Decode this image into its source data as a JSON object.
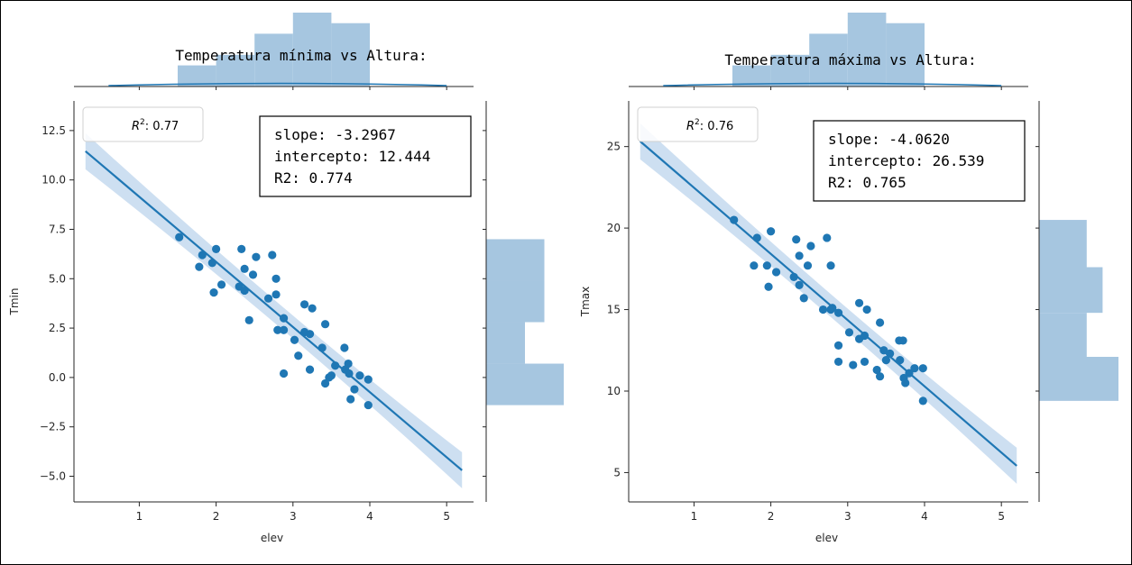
{
  "chart_data": [
    {
      "type": "scatter",
      "title": "Temperatura mínima vs Altura:",
      "xlabel": "elev",
      "ylabel": "Tmin",
      "xlim": [
        0.15,
        5.35
      ],
      "ylim": [
        -6.3,
        14.0
      ],
      "xticks": [
        1,
        2,
        3,
        4,
        5
      ],
      "yticks": [
        -5.0,
        -2.5,
        0.0,
        2.5,
        5.0,
        7.5,
        10.0,
        12.5
      ],
      "ytick_labels": [
        "−5.0",
        "−2.5",
        "0.0",
        "2.5",
        "5.0",
        "7.5",
        "10.0",
        "12.5"
      ],
      "legend": {
        "label": "R",
        "sup": "2",
        "value": ": 0.77",
        "placement": "top-left"
      },
      "stats": [
        "slope: -3.2967",
        "intercepto: 12.444",
        "R2: 0.774"
      ],
      "regression": {
        "slope": -3.2967,
        "intercept": 12.444,
        "x_range": [
          0.3,
          5.2
        ]
      },
      "points": [
        [
          1.52,
          7.1
        ],
        [
          1.78,
          5.6
        ],
        [
          1.82,
          6.2
        ],
        [
          1.95,
          5.8
        ],
        [
          1.97,
          4.3
        ],
        [
          2.0,
          6.5
        ],
        [
          2.07,
          4.7
        ],
        [
          2.3,
          4.6
        ],
        [
          2.33,
          6.5
        ],
        [
          2.37,
          4.4
        ],
        [
          2.37,
          5.5
        ],
        [
          2.43,
          2.9
        ],
        [
          2.48,
          5.2
        ],
        [
          2.52,
          6.1
        ],
        [
          2.68,
          4.0
        ],
        [
          2.73,
          6.2
        ],
        [
          2.78,
          4.2
        ],
        [
          2.78,
          5.0
        ],
        [
          2.8,
          2.4
        ],
        [
          2.88,
          2.4
        ],
        [
          2.88,
          3.0
        ],
        [
          2.88,
          0.2
        ],
        [
          3.02,
          1.9
        ],
        [
          3.07,
          1.1
        ],
        [
          3.15,
          2.3
        ],
        [
          3.15,
          3.7
        ],
        [
          3.22,
          2.2
        ],
        [
          3.22,
          0.4
        ],
        [
          3.25,
          3.5
        ],
        [
          3.38,
          1.5
        ],
        [
          3.42,
          2.7
        ],
        [
          3.42,
          -0.3
        ],
        [
          3.47,
          0.0
        ],
        [
          3.5,
          0.1
        ],
        [
          3.55,
          0.6
        ],
        [
          3.67,
          1.5
        ],
        [
          3.68,
          0.4
        ],
        [
          3.72,
          0.7
        ],
        [
          3.73,
          0.2
        ],
        [
          3.75,
          -1.1
        ],
        [
          3.8,
          -0.6
        ],
        [
          3.87,
          0.1
        ],
        [
          3.98,
          -0.1
        ],
        [
          3.98,
          -1.4
        ]
      ],
      "marginal_x_hist": {
        "bin_edges": [
          0.6,
          1.5,
          2.0,
          2.5,
          3.0,
          3.5,
          4.0
        ],
        "counts": [
          0.05,
          2,
          3,
          5,
          7,
          6
        ]
      },
      "marginal_y_hist": {
        "bin_edges": [
          -1.4,
          0.7,
          2.8,
          4.9,
          7.0
        ],
        "counts": [
          4,
          2,
          3,
          3
        ]
      }
    },
    {
      "type": "scatter",
      "title": "Temperatura máxima vs Altura:",
      "xlabel": "elev",
      "ylabel": "Tmax",
      "xlim": [
        0.15,
        5.35
      ],
      "ylim": [
        3.2,
        27.8
      ],
      "xticks": [
        1,
        2,
        3,
        4,
        5
      ],
      "yticks": [
        5,
        10,
        15,
        20,
        25
      ],
      "ytick_labels": [
        "5",
        "10",
        "15",
        "20",
        "25"
      ],
      "legend": {
        "label": "R",
        "sup": "2",
        "value": ": 0.76",
        "placement": "top-left"
      },
      "stats": [
        "slope: -4.0620",
        "intercepto: 26.539",
        "R2: 0.765"
      ],
      "regression": {
        "slope": -4.062,
        "intercept": 26.539,
        "x_range": [
          0.3,
          5.2
        ]
      },
      "points": [
        [
          1.52,
          20.5
        ],
        [
          1.78,
          17.7
        ],
        [
          1.82,
          19.4
        ],
        [
          1.95,
          17.7
        ],
        [
          1.97,
          16.4
        ],
        [
          2.0,
          19.8
        ],
        [
          2.07,
          17.3
        ],
        [
          2.3,
          17.0
        ],
        [
          2.33,
          19.3
        ],
        [
          2.37,
          18.3
        ],
        [
          2.37,
          16.5
        ],
        [
          2.43,
          15.7
        ],
        [
          2.48,
          17.7
        ],
        [
          2.52,
          18.9
        ],
        [
          2.68,
          15.0
        ],
        [
          2.73,
          19.4
        ],
        [
          2.78,
          17.7
        ],
        [
          2.78,
          15.0
        ],
        [
          2.8,
          15.1
        ],
        [
          2.88,
          14.8
        ],
        [
          2.88,
          12.8
        ],
        [
          2.88,
          11.8
        ],
        [
          3.02,
          13.6
        ],
        [
          3.07,
          11.6
        ],
        [
          3.15,
          13.2
        ],
        [
          3.15,
          15.4
        ],
        [
          3.22,
          11.8
        ],
        [
          3.22,
          13.4
        ],
        [
          3.25,
          15.0
        ],
        [
          3.38,
          11.3
        ],
        [
          3.42,
          14.2
        ],
        [
          3.42,
          10.9
        ],
        [
          3.47,
          12.5
        ],
        [
          3.5,
          11.9
        ],
        [
          3.55,
          12.3
        ],
        [
          3.67,
          13.1
        ],
        [
          3.68,
          11.9
        ],
        [
          3.72,
          13.1
        ],
        [
          3.73,
          10.8
        ],
        [
          3.75,
          10.5
        ],
        [
          3.8,
          11.1
        ],
        [
          3.87,
          11.4
        ],
        [
          3.98,
          11.4
        ],
        [
          3.98,
          9.4
        ]
      ],
      "marginal_x_hist": {
        "bin_edges": [
          0.6,
          1.5,
          2.0,
          2.5,
          3.0,
          3.5,
          4.0
        ],
        "counts": [
          0.05,
          2,
          3,
          5,
          7,
          6
        ]
      },
      "marginal_y_hist": {
        "bin_edges": [
          9.4,
          12.1,
          14.8,
          17.6,
          20.5
        ],
        "counts": [
          5,
          3,
          4,
          3
        ]
      }
    }
  ],
  "colors": {
    "points": "#1f77b4",
    "line": "#1f77b4",
    "ci_band": "#bcd4ec",
    "hist_fill": "#a6c6e0",
    "axis": "#262626"
  }
}
